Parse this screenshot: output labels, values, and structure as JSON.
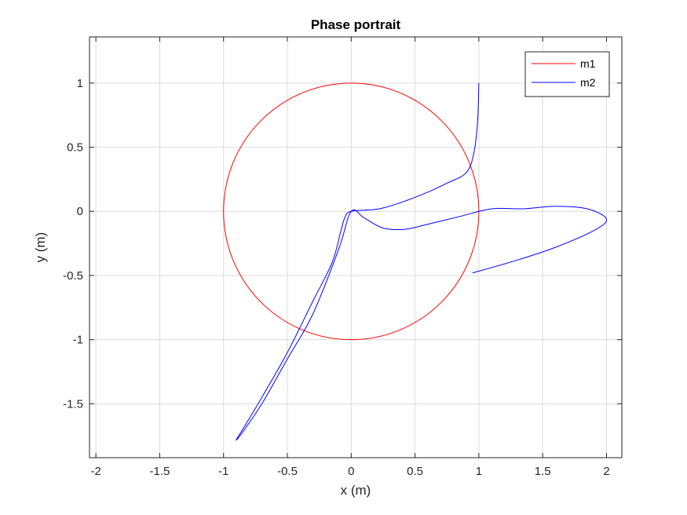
{
  "chart_data": {
    "type": "line",
    "title": "Phase portrait",
    "xlabel": "x (m)",
    "ylabel": "y (m)",
    "xlim": [
      -2.05,
      2.12
    ],
    "ylim": [
      -1.92,
      1.36
    ],
    "xticks": [
      -2,
      -1.5,
      -1,
      -0.5,
      0,
      0.5,
      1,
      1.5,
      2
    ],
    "yticks": [
      -1.5,
      -1,
      -0.5,
      0,
      0.5,
      1
    ],
    "xtick_labels": [
      "-2",
      "-1.5",
      "-1",
      "-0.5",
      "0",
      "0.5",
      "1",
      "1.5",
      "2"
    ],
    "ytick_labels": [
      "-1.5",
      "-1",
      "-0.5",
      "0",
      "0.5",
      "1"
    ],
    "grid": true,
    "legend_position": "top-right",
    "series": [
      {
        "name": "m1",
        "color": "#ff0000",
        "shape": "circle",
        "center": [
          0,
          0
        ],
        "radius": 1
      },
      {
        "name": "m2",
        "color": "#0000ff",
        "points": [
          [
            1.0,
            1.0
          ],
          [
            0.99,
            0.7
          ],
          [
            0.96,
            0.45
          ],
          [
            0.9,
            0.3
          ],
          [
            0.75,
            0.22
          ],
          [
            0.6,
            0.15
          ],
          [
            0.42,
            0.08
          ],
          [
            0.22,
            0.02
          ],
          [
            0.0,
            0.0
          ],
          [
            -0.05,
            -0.05
          ],
          [
            -0.08,
            -0.15
          ],
          [
            -0.15,
            -0.4
          ],
          [
            -0.3,
            -0.7
          ],
          [
            -0.5,
            -1.1
          ],
          [
            -0.7,
            -1.45
          ],
          [
            -0.82,
            -1.65
          ],
          [
            -0.9,
            -1.78
          ],
          [
            -0.85,
            -1.72
          ],
          [
            -0.7,
            -1.5
          ],
          [
            -0.5,
            -1.15
          ],
          [
            -0.3,
            -0.8
          ],
          [
            -0.1,
            -0.3
          ],
          [
            0.0,
            0.0
          ],
          [
            0.1,
            -0.05
          ],
          [
            0.25,
            -0.13
          ],
          [
            0.42,
            -0.14
          ],
          [
            0.6,
            -0.1
          ],
          [
            0.85,
            -0.04
          ],
          [
            1.1,
            0.02
          ],
          [
            1.35,
            0.02
          ],
          [
            1.6,
            0.04
          ],
          [
            1.85,
            0.02
          ],
          [
            2.0,
            -0.06
          ],
          [
            1.9,
            -0.15
          ],
          [
            1.6,
            -0.28
          ],
          [
            1.3,
            -0.38
          ],
          [
            0.95,
            -0.48
          ]
        ]
      }
    ]
  }
}
